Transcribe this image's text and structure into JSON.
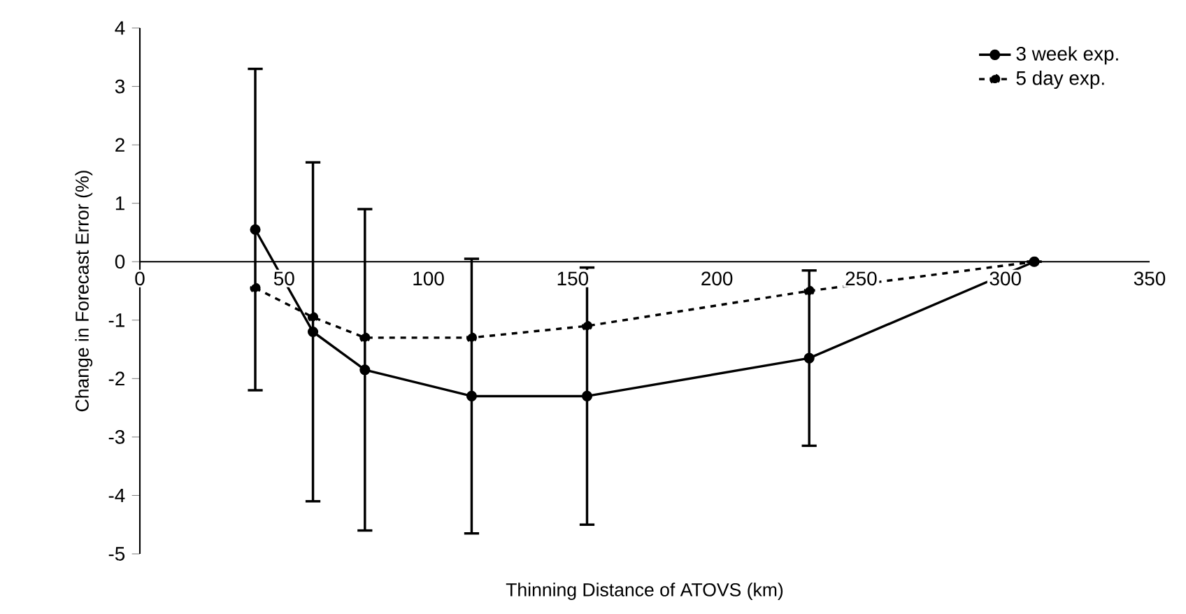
{
  "chart_data": {
    "type": "line",
    "xlabel": "Thinning Distance of ATOVS (km)",
    "ylabel": "Change in Forecast Error (%)",
    "x": [
      40,
      60,
      78,
      115,
      155,
      232,
      310
    ],
    "series": [
      {
        "name": "3 week exp.",
        "color": "#000000",
        "line_style": "solid",
        "values": [
          0.55,
          -1.2,
          -1.85,
          -2.3,
          -2.3,
          -1.65,
          0
        ],
        "errors": [
          2.75,
          2.9,
          2.75,
          2.35,
          2.2,
          1.5,
          null
        ]
      },
      {
        "name": "5 day exp.",
        "color": "#000000",
        "line_style": "dashed",
        "values": [
          -0.45,
          -0.95,
          -1.3,
          -1.3,
          -1.1,
          -0.5,
          0
        ]
      }
    ],
    "xlim": [
      0,
      350
    ],
    "xticks": [
      0,
      50,
      100,
      150,
      200,
      250,
      300,
      350
    ],
    "ylim": [
      -5,
      4
    ],
    "yticks": [
      -5,
      -4,
      -3,
      -2,
      -1,
      0,
      1,
      2,
      3,
      4
    ],
    "marker": "circle",
    "legend": "top right"
  }
}
